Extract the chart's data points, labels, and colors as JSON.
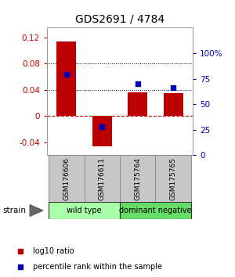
{
  "title": "GDS2691 / 4784",
  "samples": [
    "GSM176606",
    "GSM176611",
    "GSM175764",
    "GSM175765"
  ],
  "log10_ratio": [
    0.114,
    -0.047,
    0.036,
    0.035
  ],
  "percentile_rank": [
    0.79,
    0.28,
    0.7,
    0.66
  ],
  "bar_color": "#BB0000",
  "dot_color": "#0000BB",
  "ylim_left": [
    -0.06,
    0.135
  ],
  "ylim_right": [
    0.0,
    1.25
  ],
  "yticks_left": [
    -0.04,
    0.0,
    0.04,
    0.08,
    0.12
  ],
  "yticks_right": [
    0.0,
    0.25,
    0.5,
    0.75,
    1.0
  ],
  "ytick_labels_right": [
    "0",
    "25",
    "50",
    "75",
    "100%"
  ],
  "ytick_labels_left": [
    "-0.04",
    "0",
    "0.04",
    "0.08",
    "0.12"
  ],
  "hlines": [
    0.04,
    0.08
  ],
  "zero_line": 0.0,
  "strain_label": "strain",
  "legend_bar_label": "log10 ratio",
  "legend_dot_label": "percentile rank within the sample",
  "background_color": "#ffffff",
  "sample_box_color": "#c8c8c8",
  "wildtype_color": "#aaffaa",
  "dominant_color": "#66dd66",
  "group_border_color": "#333333"
}
